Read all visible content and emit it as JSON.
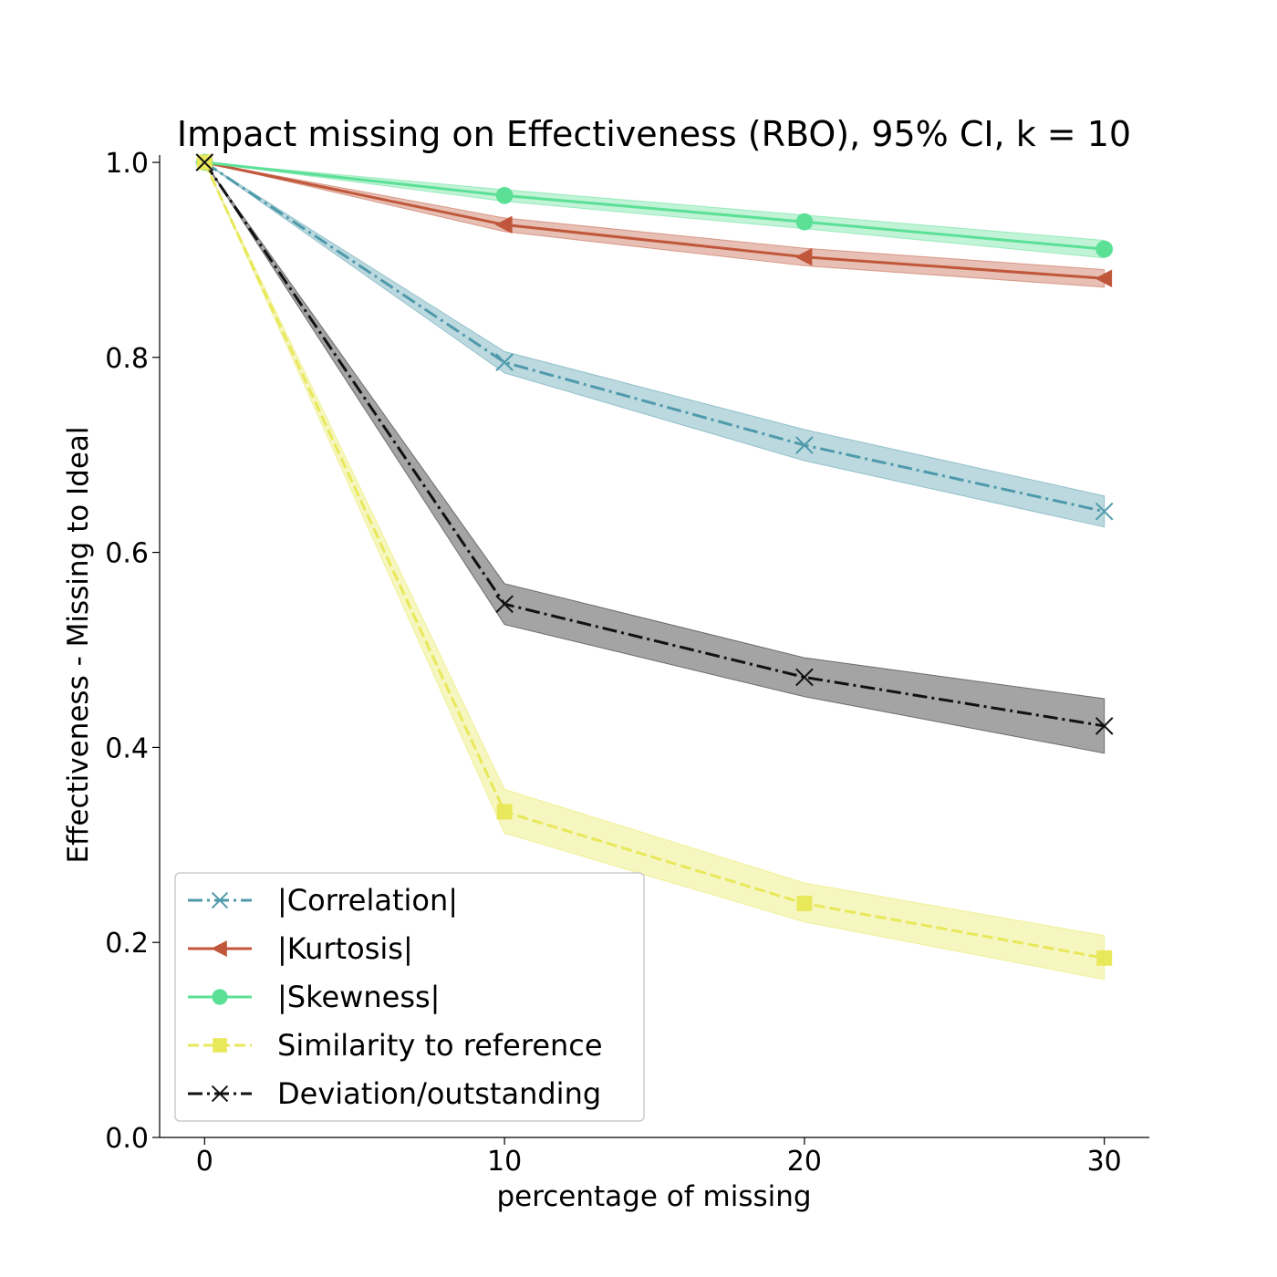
{
  "chart_data": {
    "type": "line",
    "title": "Impact missing on Effectiveness (RBO), 95% CI, k = 10",
    "xlabel": "percentage of missing",
    "ylabel": "Effectiveness - Missing to Ideal",
    "x": [
      0,
      10,
      20,
      30
    ],
    "xlim": [
      -1.5,
      31.5
    ],
    "ylim": [
      0.0,
      1.0
    ],
    "xticks": [
      0,
      10,
      20,
      30
    ],
    "yticks": [
      0.0,
      0.2,
      0.4,
      0.6,
      0.8,
      1.0
    ],
    "xtick_labels": [
      "0",
      "10",
      "20",
      "30"
    ],
    "ytick_labels": [
      "0.0",
      "0.2",
      "0.4",
      "0.6",
      "0.8",
      "1.0"
    ],
    "grid": false,
    "legend_position": "lower-left",
    "series": [
      {
        "name": "|Correlation|",
        "values": [
          1.0,
          0.795,
          0.71,
          0.642
        ],
        "ci_low": [
          1.0,
          0.784,
          0.694,
          0.626
        ],
        "ci_high": [
          1.0,
          0.806,
          0.726,
          0.658
        ],
        "color": "#4e9aab",
        "dash": "dashdot",
        "marker": "x"
      },
      {
        "name": "|Kurtosis|",
        "values": [
          1.0,
          0.936,
          0.903,
          0.881
        ],
        "ci_low": [
          1.0,
          0.929,
          0.894,
          0.872
        ],
        "ci_high": [
          1.0,
          0.943,
          0.912,
          0.89
        ],
        "color": "#c0573b",
        "dash": "solid",
        "marker": "triangle-left"
      },
      {
        "name": "|Skewness|",
        "values": [
          1.0,
          0.966,
          0.939,
          0.911
        ],
        "ci_low": [
          1.0,
          0.96,
          0.932,
          0.902
        ],
        "ci_high": [
          1.0,
          0.972,
          0.946,
          0.92
        ],
        "color": "#5be096",
        "dash": "solid",
        "marker": "circle"
      },
      {
        "name": "Similarity to reference",
        "values": [
          1.0,
          0.334,
          0.24,
          0.184
        ],
        "ci_low": [
          1.0,
          0.312,
          0.221,
          0.162
        ],
        "ci_high": [
          1.0,
          0.357,
          0.261,
          0.207
        ],
        "color": "#e8e85a",
        "dash": "dashed",
        "marker": "square"
      },
      {
        "name": "Deviation/outstanding",
        "values": [
          1.0,
          0.547,
          0.472,
          0.422
        ],
        "ci_low": [
          1.0,
          0.526,
          0.452,
          0.394
        ],
        "ci_high": [
          1.0,
          0.568,
          0.492,
          0.45
        ],
        "color": "#111111",
        "dash": "dashdot",
        "marker": "x"
      }
    ]
  }
}
